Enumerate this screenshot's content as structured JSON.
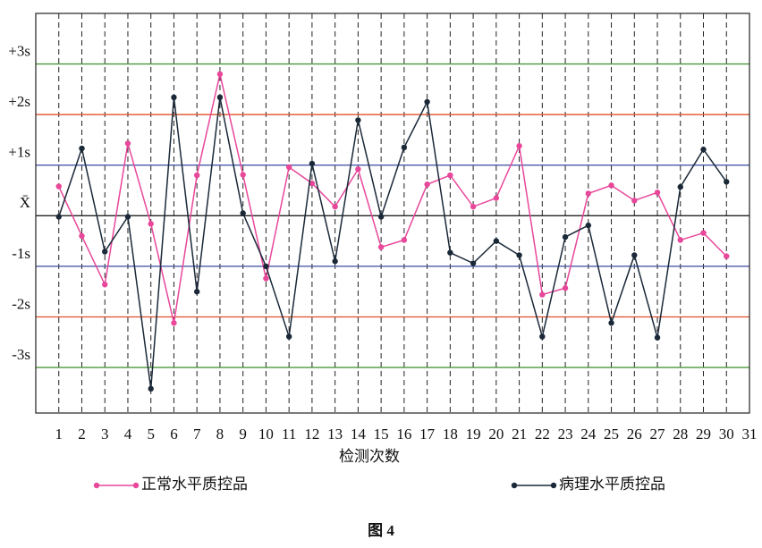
{
  "chart_data": {
    "type": "line",
    "xlabel": "检测次数",
    "caption": "图 4",
    "x": [
      1,
      2,
      3,
      4,
      5,
      6,
      7,
      8,
      9,
      10,
      11,
      12,
      13,
      14,
      15,
      16,
      17,
      18,
      19,
      20,
      21,
      22,
      23,
      24,
      25,
      26,
      27,
      28,
      29,
      30
    ],
    "series": [
      {
        "name": "正常水平质控品",
        "color": "#e8479a",
        "values": [
          0.58,
          -0.4,
          -1.36,
          1.43,
          -0.16,
          -2.12,
          0.8,
          2.8,
          0.81,
          -1.24,
          0.96,
          0.64,
          0.18,
          0.92,
          -0.62,
          -0.48,
          0.62,
          0.8,
          0.18,
          0.35,
          1.38,
          -1.56,
          -1.43,
          0.44,
          0.6,
          0.3,
          0.46,
          -0.48,
          -0.34,
          -0.8
        ]
      },
      {
        "name": "病理水平质控品",
        "color": "#1a2838",
        "values": [
          -0.02,
          1.33,
          -0.71,
          -0.02,
          -3.42,
          2.34,
          -1.5,
          2.34,
          0.05,
          -1.0,
          -2.39,
          1.03,
          -0.9,
          1.89,
          -0.02,
          1.35,
          2.25,
          -0.73,
          -0.94,
          -0.5,
          -0.78,
          -2.39,
          -0.42,
          -0.19,
          -2.12,
          -0.78,
          -2.41,
          0.57,
          1.31,
          0.67
        ]
      }
    ],
    "xlim": [
      0,
      31
    ],
    "xticks": [
      1,
      2,
      3,
      4,
      5,
      6,
      7,
      8,
      9,
      10,
      11,
      12,
      13,
      14,
      15,
      16,
      17,
      18,
      19,
      20,
      21,
      22,
      23,
      24,
      25,
      26,
      27,
      28,
      29,
      30,
      31
    ],
    "ylim": [
      -3.9,
      4.0
    ],
    "yticks": [
      {
        "value": 3,
        "label": "+3s",
        "color": "#4a9a3a"
      },
      {
        "value": 2,
        "label": "+2s",
        "color": "#e0502a"
      },
      {
        "value": 1,
        "label": "+1s",
        "color": "#3a4aa0"
      },
      {
        "value": 0,
        "label": "X̄",
        "color": "#222222"
      },
      {
        "value": -1,
        "label": "-1s",
        "color": "#3a4aa0"
      },
      {
        "value": -2,
        "label": "-2s",
        "color": "#e0502a"
      },
      {
        "value": -3,
        "label": "-3s",
        "color": "#4a9a3a"
      }
    ],
    "grid": true
  }
}
